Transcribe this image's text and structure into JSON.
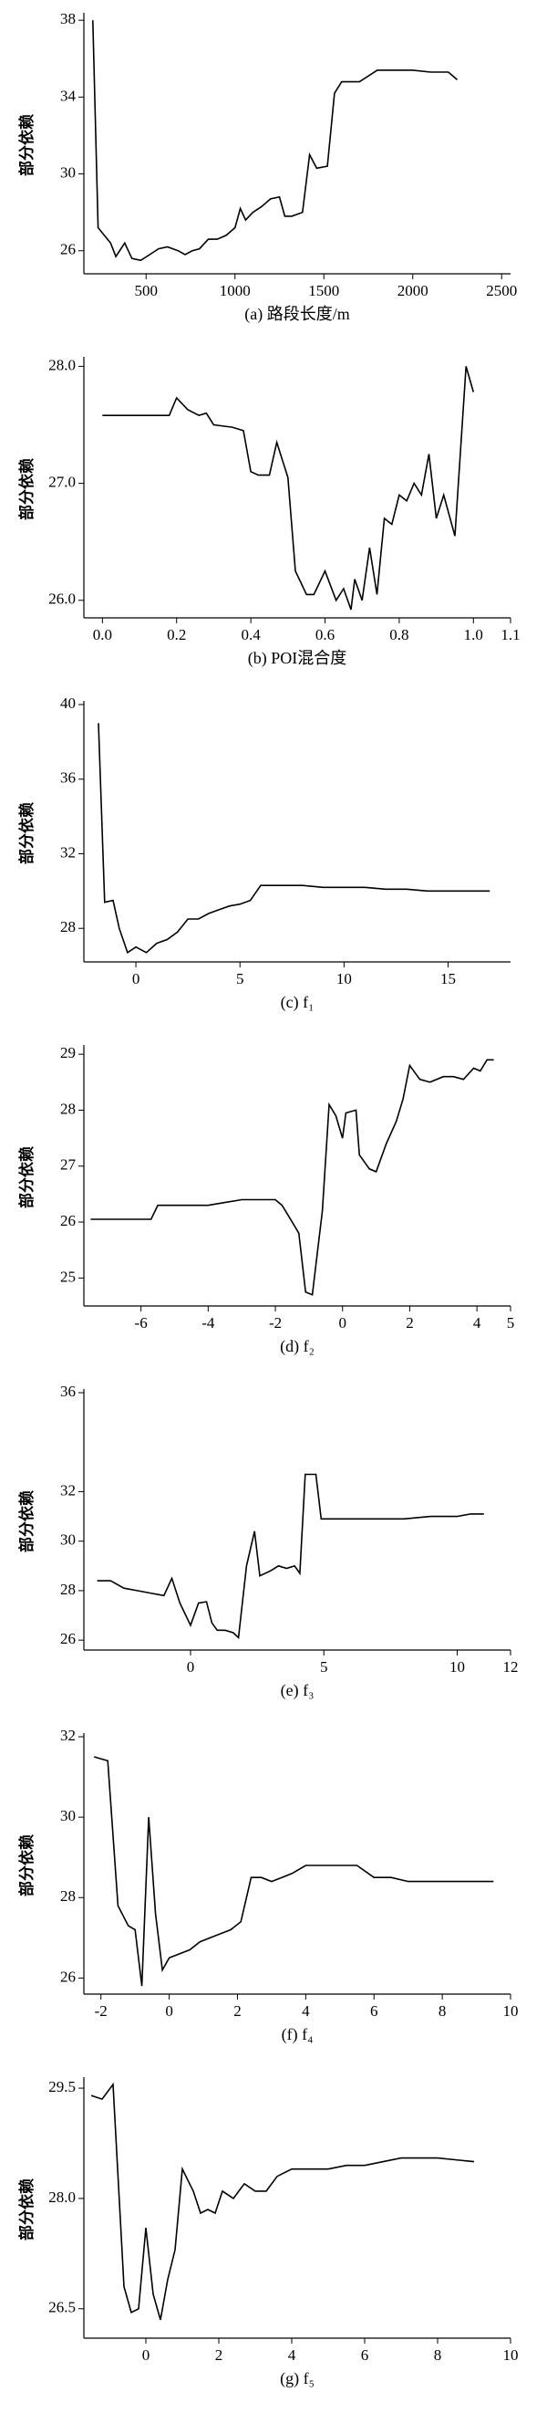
{
  "chart_data": [
    {
      "type": "line",
      "ylabel": "部分依赖",
      "caption": "(a) 路段长度/m",
      "color": "#000000",
      "xlim": [
        150,
        2550
      ],
      "xticks": [
        500,
        1000,
        1500,
        2000,
        2500
      ],
      "ylim": [
        24.8,
        38.2
      ],
      "yticks": [
        26,
        30,
        34,
        38
      ],
      "x": [
        200,
        230,
        300,
        330,
        380,
        420,
        470,
        520,
        570,
        620,
        680,
        720,
        760,
        800,
        850,
        900,
        950,
        1000,
        1030,
        1060,
        1100,
        1150,
        1200,
        1250,
        1280,
        1320,
        1380,
        1420,
        1460,
        1520,
        1560,
        1600,
        1700,
        1800,
        1900,
        2000,
        2100,
        2200,
        2250
      ],
      "values": [
        38,
        27.2,
        26.4,
        25.7,
        26.4,
        25.6,
        25.5,
        25.8,
        26.1,
        26.2,
        26.0,
        25.8,
        26.0,
        26.1,
        26.6,
        26.6,
        26.8,
        27.2,
        28.2,
        27.6,
        28.0,
        28.3,
        28.7,
        28.8,
        27.8,
        27.8,
        28.0,
        31.0,
        30.3,
        30.4,
        34.2,
        34.8,
        34.8,
        35.4,
        35.4,
        35.4,
        35.3,
        35.3,
        34.9
      ]
    },
    {
      "type": "line",
      "ylabel": "部分依赖",
      "caption": "(b) POI混合度",
      "color": "#000000",
      "xlim": [
        -0.05,
        1.1
      ],
      "xticks": [
        {
          "value": 0,
          "label": "0.0"
        },
        {
          "value": 0.2,
          "label": "0.2"
        },
        {
          "value": 0.4,
          "label": "0.4"
        },
        {
          "value": 0.6,
          "label": "0.6"
        },
        {
          "value": 0.8,
          "label": "0.8"
        },
        {
          "value": 1,
          "label": "1.0"
        },
        1.1
      ],
      "ylim": [
        25.85,
        28.05
      ],
      "yticks": [
        {
          "value": 26,
          "label": "26.0"
        },
        {
          "value": 27,
          "label": "27.0"
        },
        {
          "value": 28,
          "label": "28.0"
        }
      ],
      "x": [
        0,
        0.05,
        0.1,
        0.15,
        0.18,
        0.2,
        0.23,
        0.26,
        0.28,
        0.3,
        0.35,
        0.38,
        0.4,
        0.42,
        0.45,
        0.47,
        0.5,
        0.52,
        0.55,
        0.57,
        0.6,
        0.63,
        0.65,
        0.67,
        0.68,
        0.7,
        0.72,
        0.74,
        0.76,
        0.78,
        0.8,
        0.82,
        0.84,
        0.86,
        0.88,
        0.9,
        0.92,
        0.95,
        0.98,
        1.0
      ],
      "values": [
        27.58,
        27.58,
        27.58,
        27.58,
        27.58,
        27.73,
        27.63,
        27.58,
        27.6,
        27.5,
        27.48,
        27.45,
        27.1,
        27.07,
        27.07,
        27.35,
        27.05,
        26.25,
        26.05,
        26.05,
        26.25,
        26.0,
        26.1,
        25.92,
        26.18,
        26.0,
        26.45,
        26.05,
        26.7,
        26.65,
        26.9,
        26.85,
        27.0,
        26.9,
        27.25,
        26.7,
        26.9,
        26.55,
        28.0,
        27.78
      ]
    },
    {
      "type": "line",
      "ylabel": "部分依赖",
      "caption": "(c) f₁",
      "color": "#000000",
      "xlim": [
        -2.5,
        18
      ],
      "xticks": [
        0,
        5,
        10,
        15
      ],
      "ylim": [
        26.2,
        40
      ],
      "yticks": [
        28,
        32,
        36,
        40
      ],
      "x": [
        -1.8,
        -1.5,
        -1.1,
        -0.8,
        -0.4,
        0,
        0.5,
        1,
        1.5,
        2,
        2.5,
        3,
        3.5,
        4,
        4.5,
        5,
        5.5,
        6,
        7,
        8,
        9,
        10,
        11,
        12,
        13,
        14,
        15,
        16,
        17
      ],
      "values": [
        39,
        29.4,
        29.5,
        28,
        26.7,
        27,
        26.7,
        27.2,
        27.4,
        27.8,
        28.5,
        28.5,
        28.8,
        29,
        29.2,
        29.3,
        29.5,
        30.3,
        30.3,
        30.3,
        30.2,
        30.2,
        30.2,
        30.1,
        30.1,
        30,
        30,
        30,
        30
      ]
    },
    {
      "type": "line",
      "ylabel": "部分依赖",
      "caption": "(d) f₂",
      "color": "#000000",
      "xlim": [
        -7.7,
        5
      ],
      "xticks": [
        -6,
        -4,
        -2,
        0,
        2,
        4,
        5
      ],
      "ylim": [
        24.5,
        29.1
      ],
      "yticks": [
        25,
        26,
        27,
        28,
        29
      ],
      "x": [
        -7.5,
        -6,
        -5.7,
        -5.5,
        -4.5,
        -4,
        -3.5,
        -3,
        -2.5,
        -2,
        -1.8,
        -1.5,
        -1.3,
        -1.1,
        -0.9,
        -0.6,
        -0.4,
        -0.2,
        0,
        0.1,
        0.4,
        0.5,
        0.8,
        1,
        1.3,
        1.6,
        1.8,
        2,
        2.3,
        2.6,
        3,
        3.3,
        3.6,
        3.9,
        4.1,
        4.3,
        4.5
      ],
      "values": [
        26.05,
        26.05,
        26.05,
        26.3,
        26.3,
        26.3,
        26.35,
        26.4,
        26.4,
        26.4,
        26.3,
        26,
        25.8,
        24.75,
        24.7,
        26.2,
        28.1,
        27.9,
        27.5,
        27.95,
        28.0,
        27.2,
        26.95,
        26.9,
        27.4,
        27.8,
        28.2,
        28.8,
        28.55,
        28.5,
        28.6,
        28.6,
        28.55,
        28.75,
        28.7,
        28.9,
        28.9
      ]
    },
    {
      "type": "line",
      "ylabel": "部分依赖",
      "caption": "(e) f₃",
      "color": "#000000",
      "xlim": [
        -4,
        12
      ],
      "xticks": [
        0,
        5,
        10,
        12
      ],
      "ylim": [
        25.6,
        36
      ],
      "yticks": [
        26,
        28,
        30,
        32,
        36
      ],
      "x": [
        -3.5,
        -3,
        -2.5,
        -2,
        -1.5,
        -1,
        -0.7,
        -0.4,
        0,
        0.3,
        0.6,
        0.8,
        1,
        1.3,
        1.6,
        1.8,
        2.1,
        2.4,
        2.6,
        3,
        3.3,
        3.6,
        3.9,
        4.1,
        4.3,
        4.7,
        4.9,
        6,
        7,
        8,
        9,
        10,
        10.5,
        11
      ],
      "values": [
        28.4,
        28.4,
        28.1,
        28,
        27.9,
        27.8,
        28.5,
        27.5,
        26.6,
        27.5,
        27.55,
        26.7,
        26.4,
        26.4,
        26.3,
        26.1,
        29,
        30.4,
        28.6,
        28.8,
        29,
        28.9,
        29,
        28.7,
        32.7,
        32.7,
        30.9,
        30.9,
        30.9,
        30.9,
        31,
        31,
        31.1,
        31.1
      ]
    },
    {
      "type": "line",
      "ylabel": "部分依赖",
      "caption": "(f) f₄",
      "color": "#000000",
      "xlim": [
        -2.5,
        10
      ],
      "xticks": [
        -2,
        0,
        2,
        4,
        6,
        8,
        10
      ],
      "ylim": [
        25.6,
        32
      ],
      "yticks": [
        26,
        28,
        30,
        32
      ],
      "x": [
        -2.2,
        -1.8,
        -1.5,
        -1.2,
        -1,
        -0.8,
        -0.6,
        -0.4,
        -0.2,
        0,
        0.3,
        0.6,
        0.9,
        1.2,
        1.5,
        1.8,
        2.1,
        2.4,
        2.7,
        3,
        3.3,
        3.6,
        4,
        4.5,
        5,
        5.5,
        6,
        6.5,
        7,
        8,
        9,
        9.5
      ],
      "values": [
        31.5,
        31.4,
        27.8,
        27.3,
        27.2,
        25.8,
        30,
        27.6,
        26.2,
        26.5,
        26.6,
        26.7,
        26.9,
        27,
        27.1,
        27.2,
        27.4,
        28.5,
        28.5,
        28.4,
        28.5,
        28.6,
        28.8,
        28.8,
        28.8,
        28.8,
        28.5,
        28.5,
        28.4,
        28.4,
        28.4,
        28.4
      ]
    },
    {
      "type": "line",
      "ylabel": "部分依赖",
      "caption": "(g) f₅",
      "color": "#000000",
      "xlim": [
        -1.7,
        10
      ],
      "xticks": [
        0,
        2,
        4,
        6,
        8,
        10
      ],
      "ylim": [
        26.1,
        29.6
      ],
      "yticks": [
        {
          "value": 26.5,
          "label": "26.5"
        },
        {
          "value": 28,
          "label": "28.0"
        },
        {
          "value": 29.5,
          "label": "29.5"
        }
      ],
      "x": [
        -1.5,
        -1.2,
        -0.9,
        -0.6,
        -0.4,
        -0.2,
        0,
        0.2,
        0.4,
        0.6,
        0.8,
        1,
        1.3,
        1.5,
        1.7,
        1.9,
        2.1,
        2.4,
        2.7,
        3,
        3.3,
        3.6,
        4,
        5,
        5.5,
        6,
        7,
        8,
        9
      ],
      "values": [
        29.4,
        29.35,
        29.55,
        26.8,
        26.45,
        26.5,
        27.6,
        26.7,
        26.35,
        26.9,
        27.3,
        28.4,
        28.1,
        27.8,
        27.85,
        27.8,
        28.1,
        28,
        28.2,
        28.1,
        28.1,
        28.3,
        28.4,
        28.4,
        28.45,
        28.45,
        28.55,
        28.55,
        28.5
      ]
    }
  ]
}
